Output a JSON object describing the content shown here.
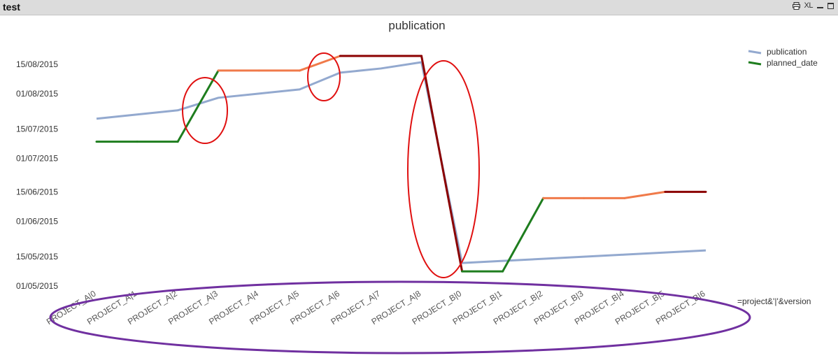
{
  "window": {
    "title": "test",
    "controls": {
      "print_icon": "printer-icon",
      "xl_label": "XL",
      "minimize_icon": "minimize-icon",
      "maximize_icon": "maximize-icon"
    }
  },
  "chart_data": {
    "type": "line",
    "title": "publication",
    "xlabel": "=project&'|'&version",
    "ylabel": "",
    "categories": [
      "PROJECT_A|0",
      "PROJECT_A|1",
      "PROJECT_A|2",
      "PROJECT_A|3",
      "PROJECT_A|4",
      "PROJECT_A|5",
      "PROJECT_A|6",
      "PROJECT_A|7",
      "PROJECT_A|8",
      "PROJECT_B|0",
      "PROJECT_B|1",
      "PROJECT_B|2",
      "PROJECT_B|3",
      "PROJECT_B|4",
      "PROJECT_B|5",
      "PROJECT_B|6"
    ],
    "y_tick_labels": [
      "01/05/2015",
      "15/05/2015",
      "01/06/2015",
      "15/06/2015",
      "01/07/2015",
      "15/07/2015",
      "01/08/2015",
      "15/08/2015"
    ],
    "y_tick_values": [
      "2015-05-01",
      "2015-05-15",
      "2015-06-01",
      "2015-06-15",
      "2015-07-01",
      "2015-07-15",
      "2015-08-01",
      "2015-08-15"
    ],
    "ylim": [
      "2015-05-01",
      "2015-08-20"
    ],
    "grid": false,
    "legend_position": "top-right",
    "series": [
      {
        "name": "publication",
        "color": "#93a9cf",
        "values": [
          "2015-07-20",
          "2015-07-22",
          "2015-07-24",
          "2015-07-30",
          "2015-08-01",
          "2015-08-03",
          "2015-08-11",
          "2015-08-13",
          "2015-08-16",
          "2015-05-12",
          "2015-05-13",
          "2015-05-14",
          "2015-05-15",
          "2015-05-16",
          "2015-05-17",
          "2015-05-18"
        ]
      },
      {
        "name": "planned_date",
        "color": "#1e7d1e",
        "values": [
          "2015-07-09",
          "2015-07-09",
          "2015-07-09",
          "2015-08-12",
          "2015-08-12",
          "2015-08-12",
          "2015-08-19",
          "2015-08-19",
          "2015-08-19",
          "2015-05-08",
          "2015-05-08",
          "2015-06-12",
          "2015-06-12",
          "2015-06-12",
          "2015-06-15",
          "2015-06-15"
        ],
        "segment_colors": [
          "#1e7d1e",
          "#1e7d1e",
          "#1e7d1e",
          "#f07a4a",
          "#f07a4a",
          "#f07a4a",
          "#8b0000",
          "#8b0000",
          "#8b0000",
          "#1e7d1e",
          "#1e7d1e",
          "#f07a4a",
          "#f07a4a",
          "#f07a4a",
          "#8b0000"
        ]
      }
    ],
    "annotations": {
      "highlight_ellipse_color": "#e01010",
      "axis_ellipse_color": "#7030a0"
    }
  }
}
